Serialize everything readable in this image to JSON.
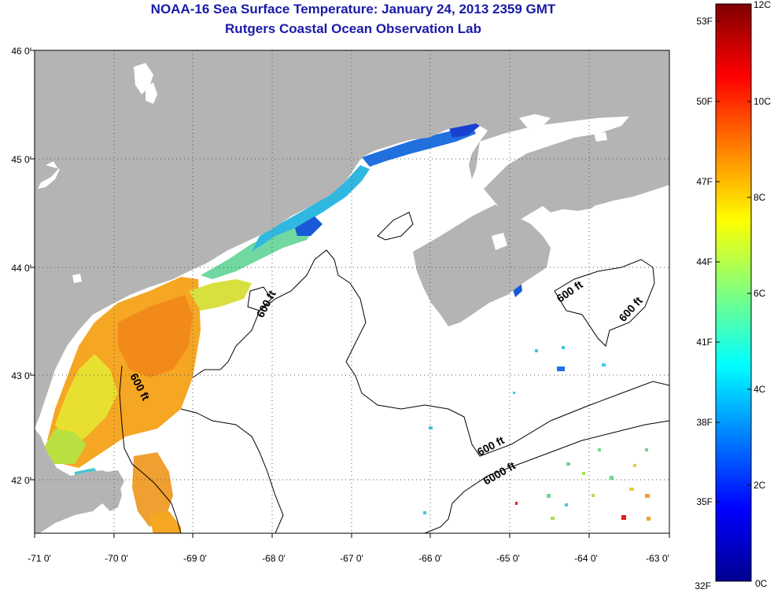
{
  "title": "NOAA-16 Sea Surface Temperature:  January 24, 2013 2359 GMT",
  "subtitle": "Rutgers Coastal Ocean Observation Lab",
  "map": {
    "lat_labels": [
      "46 0'",
      "45 0'",
      "44 0'",
      "43 0'",
      "42 0'"
    ],
    "lon_labels": [
      "-71 0'",
      "-70 0'",
      "-69 0'",
      "-68 0'",
      "-67 0'",
      "-66 0'",
      "-65 0'",
      "-64 0'",
      "-63 0'"
    ],
    "land_color": "#b4b4b4",
    "no_data_color": "#ffffff",
    "contour_labels": [
      "600 ft",
      "600 ft",
      "600 ft",
      "600 ft",
      "600 ft",
      "6000 ft"
    ]
  },
  "colorbar": {
    "fahrenheit_labels": [
      "53F",
      "50F",
      "47F",
      "44F",
      "41F",
      "38F",
      "35F",
      "32F"
    ],
    "celsius_labels": [
      "12C",
      "10C",
      "8C",
      "6C",
      "4C",
      "2C",
      "0C"
    ],
    "range_c": [
      0,
      12
    ],
    "colormap": "jet"
  }
}
